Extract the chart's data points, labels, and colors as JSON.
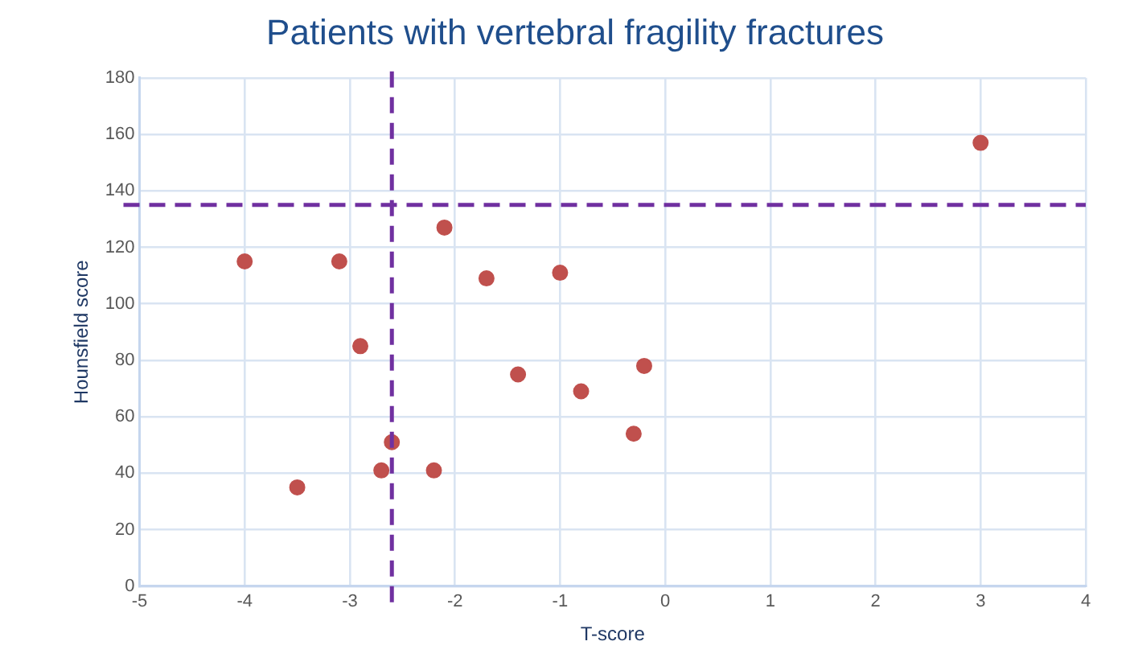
{
  "chart_data": {
    "type": "scatter",
    "title": "Patients with vertebral fragility fractures",
    "xlabel": "T-score",
    "ylabel": "Hounsfield score",
    "x": [
      -4.0,
      -3.5,
      -3.1,
      -2.9,
      -2.7,
      -2.6,
      -2.2,
      -2.1,
      -1.7,
      -1.4,
      -1.0,
      -0.8,
      -0.3,
      -0.2,
      3.0
    ],
    "series": [
      {
        "color": "#c0504d",
        "values": [
          115,
          35,
          115,
          85,
          41,
          51,
          41,
          127,
          109,
          75,
          111,
          69,
          54,
          78,
          157
        ]
      }
    ],
    "xlim": [
      -5,
      4
    ],
    "xticks": [
      -5,
      -4,
      -3,
      -2,
      -1,
      0,
      1,
      2,
      3,
      4
    ],
    "ylim": [
      0,
      180
    ],
    "yticks": [
      0,
      20,
      40,
      60,
      80,
      100,
      120,
      140,
      160,
      180
    ],
    "ref_lines": [
      {
        "axis": "x",
        "value": -2.6,
        "color": "#7030a0",
        "line_style": "dashed"
      },
      {
        "axis": "y",
        "value": 135,
        "color": "#7030a0",
        "line_style": "dashed"
      }
    ],
    "grid": true,
    "legend": false,
    "marker": "circle"
  }
}
